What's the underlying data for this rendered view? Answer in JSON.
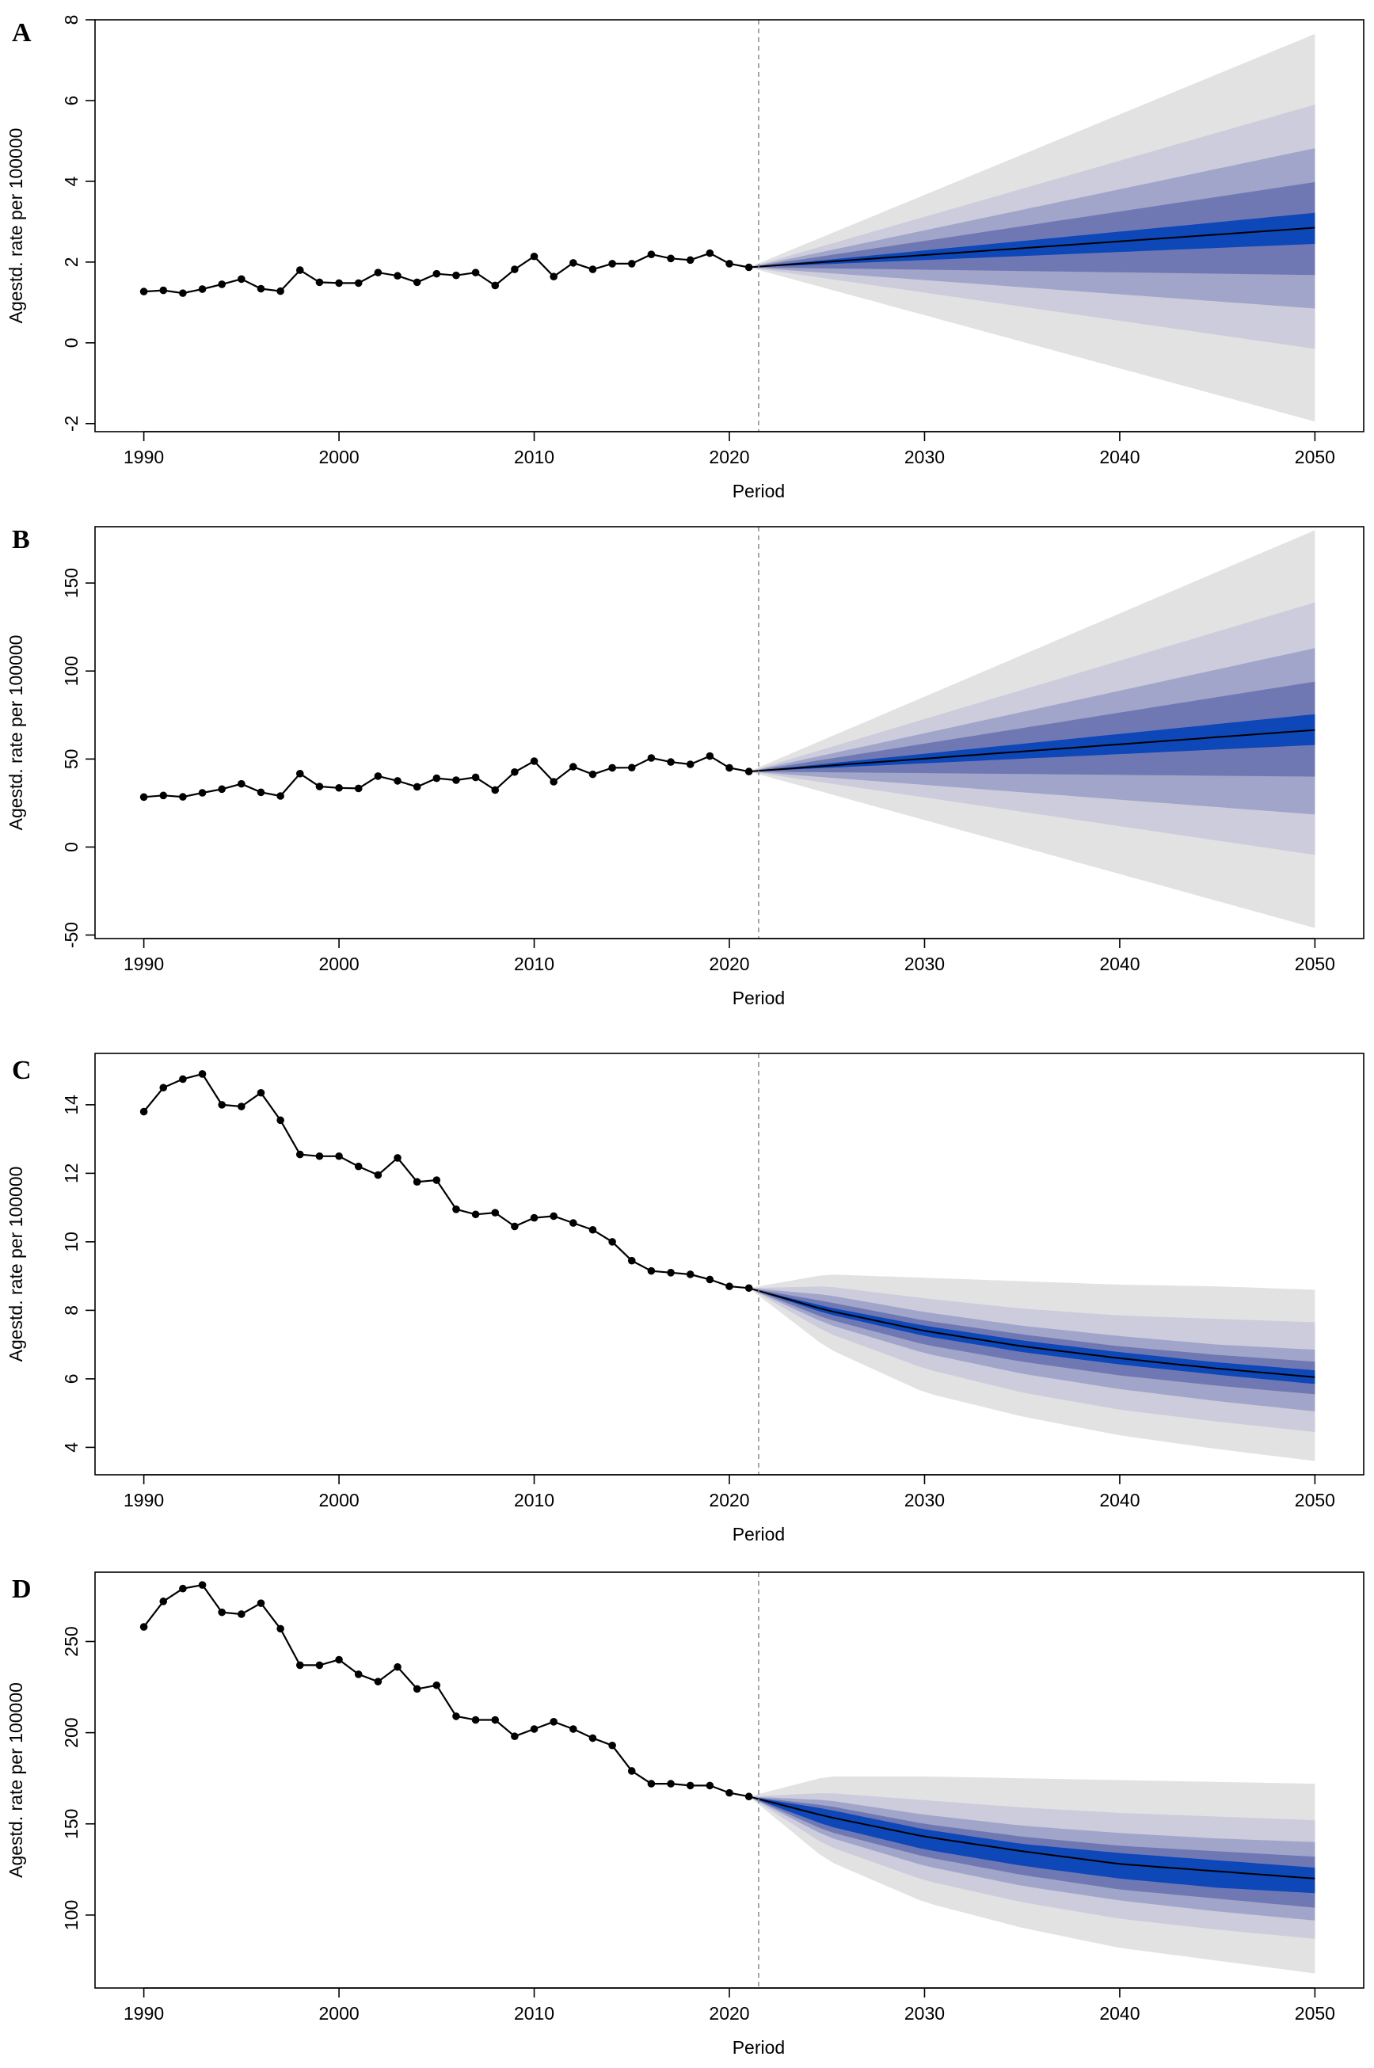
{
  "figure": {
    "background": "#ffffff"
  },
  "style": {
    "band_colors": [
      "#e2e2e2",
      "#ccccdc",
      "#a1a5c9",
      "#7078b3",
      "#0d47b8"
    ],
    "line_color": "#000000",
    "divider_color": "#888888"
  },
  "chart_data": [
    {
      "type": "line",
      "panel_label": "A",
      "xlabel": "Period",
      "ylabel": "Agestd. rate per 100000",
      "xlim": [
        1987.5,
        2052.5
      ],
      "ylim": [
        -2.2,
        8
      ],
      "xticks": [
        1990,
        2000,
        2010,
        2020,
        2030,
        2040,
        2050
      ],
      "yticks": [
        -2,
        0,
        2,
        4,
        6,
        8
      ],
      "forecast_start": 2021.5,
      "observed": {
        "x": [
          1990,
          1991,
          1992,
          1993,
          1994,
          1995,
          1996,
          1997,
          1998,
          1999,
          2000,
          2001,
          2002,
          2003,
          2004,
          2005,
          2006,
          2007,
          2008,
          2009,
          2010,
          2011,
          2012,
          2013,
          2014,
          2015,
          2016,
          2017,
          2018,
          2019,
          2020,
          2021
        ],
        "y": [
          1.27,
          1.3,
          1.23,
          1.33,
          1.45,
          1.58,
          1.34,
          1.28,
          1.8,
          1.5,
          1.48,
          1.48,
          1.74,
          1.66,
          1.5,
          1.71,
          1.67,
          1.74,
          1.42,
          1.82,
          2.14,
          1.64,
          1.98,
          1.82,
          1.96,
          1.96,
          2.19,
          2.09,
          2.05,
          2.22,
          1.96,
          1.87
        ]
      },
      "forecast": {
        "x": [
          2021,
          2050
        ],
        "mean": [
          1.87,
          2.85
        ],
        "bands": [
          {
            "lower": [
              1.87,
              -1.95
            ],
            "upper": [
              1.87,
              7.65
            ]
          },
          {
            "lower": [
              1.87,
              -0.15
            ],
            "upper": [
              1.87,
              5.9
            ]
          },
          {
            "lower": [
              1.87,
              0.85
            ],
            "upper": [
              1.87,
              4.82
            ]
          },
          {
            "lower": [
              1.87,
              1.68
            ],
            "upper": [
              1.87,
              3.98
            ]
          },
          {
            "lower": [
              1.87,
              2.45
            ],
            "upper": [
              1.87,
              3.22
            ]
          }
        ]
      }
    },
    {
      "type": "line",
      "panel_label": "B",
      "xlabel": "Period",
      "ylabel": "Agestd. rate per 100000",
      "xlim": [
        1987.5,
        2052.5
      ],
      "ylim": [
        -52,
        182
      ],
      "xticks": [
        1990,
        2000,
        2010,
        2020,
        2030,
        2040,
        2050
      ],
      "yticks": [
        -50,
        0,
        50,
        100,
        150
      ],
      "forecast_start": 2021.5,
      "observed": {
        "x": [
          1990,
          1991,
          1992,
          1993,
          1994,
          1995,
          1996,
          1997,
          1998,
          1999,
          2000,
          2001,
          2002,
          2003,
          2004,
          2005,
          2006,
          2007,
          2008,
          2009,
          2010,
          2011,
          2012,
          2013,
          2014,
          2015,
          2016,
          2017,
          2018,
          2019,
          2020,
          2021
        ],
        "y": [
          28.4,
          29.3,
          28.5,
          30.8,
          32.9,
          35.9,
          31.1,
          29.0,
          41.7,
          34.4,
          33.6,
          33.3,
          40.3,
          37.6,
          34.2,
          39.1,
          38.0,
          39.6,
          32.4,
          42.6,
          48.8,
          37.1,
          45.6,
          41.3,
          45.0,
          45.1,
          50.6,
          48.3,
          47.0,
          51.7,
          45.0,
          42.9
        ]
      },
      "forecast": {
        "x": [
          2021,
          2050
        ],
        "mean": [
          42.9,
          66.5
        ],
        "bands": [
          {
            "lower": [
              42.9,
              -46.0
            ],
            "upper": [
              42.9,
              180.0
            ]
          },
          {
            "lower": [
              42.9,
              -4.5
            ],
            "upper": [
              42.9,
              139.0
            ]
          },
          {
            "lower": [
              42.9,
              18.5
            ],
            "upper": [
              42.9,
              113.0
            ]
          },
          {
            "lower": [
              42.9,
              40.0
            ],
            "upper": [
              42.9,
              94.0
            ]
          },
          {
            "lower": [
              42.9,
              58.0
            ],
            "upper": [
              42.9,
              75.5
            ]
          }
        ]
      }
    },
    {
      "type": "line",
      "panel_label": "C",
      "xlabel": "Period",
      "ylabel": "Agestd. rate per 100000",
      "xlim": [
        1987.5,
        2052.5
      ],
      "ylim": [
        3.2,
        15.5
      ],
      "xticks": [
        1990,
        2000,
        2010,
        2020,
        2030,
        2040,
        2050
      ],
      "yticks": [
        4,
        6,
        8,
        10,
        12,
        14
      ],
      "forecast_start": 2021.5,
      "observed": {
        "x": [
          1990,
          1991,
          1992,
          1993,
          1994,
          1995,
          1996,
          1997,
          1998,
          1999,
          2000,
          2001,
          2002,
          2003,
          2004,
          2005,
          2006,
          2007,
          2008,
          2009,
          2010,
          2011,
          2012,
          2013,
          2014,
          2015,
          2016,
          2017,
          2018,
          2019,
          2020,
          2021
        ],
        "y": [
          13.8,
          14.5,
          14.75,
          14.9,
          14.0,
          13.95,
          14.35,
          13.55,
          12.55,
          12.5,
          12.5,
          12.2,
          11.95,
          12.45,
          11.75,
          11.8,
          10.95,
          10.8,
          10.85,
          10.45,
          10.7,
          10.75,
          10.55,
          10.35,
          10.0,
          9.45,
          9.15,
          9.1,
          9.05,
          8.9,
          8.7,
          8.65
        ]
      },
      "forecast": {
        "x": [
          2021,
          2025,
          2030,
          2035,
          2040,
          2045,
          2050
        ],
        "mean": [
          8.65,
          8.0,
          7.4,
          6.95,
          6.6,
          6.3,
          6.05
        ],
        "bands": [
          {
            "lower": [
              8.65,
              6.9,
              5.6,
              4.9,
              4.35,
              3.95,
              3.6
            ],
            "upper": [
              8.65,
              9.05,
              8.95,
              8.85,
              8.75,
              8.7,
              8.6
            ]
          },
          {
            "lower": [
              8.65,
              7.35,
              6.3,
              5.6,
              5.1,
              4.75,
              4.45
            ],
            "upper": [
              8.65,
              8.7,
              8.35,
              8.05,
              7.85,
              7.75,
              7.65
            ]
          },
          {
            "lower": [
              8.65,
              7.6,
              6.75,
              6.15,
              5.7,
              5.35,
              5.05
            ],
            "upper": [
              8.65,
              8.45,
              7.95,
              7.55,
              7.25,
              7.0,
              6.85
            ]
          },
          {
            "lower": [
              8.65,
              7.75,
              7.0,
              6.5,
              6.1,
              5.8,
              5.55
            ],
            "upper": [
              8.65,
              8.25,
              7.7,
              7.3,
              6.95,
              6.7,
              6.5
            ]
          },
          {
            "lower": [
              8.65,
              7.9,
              7.25,
              6.78,
              6.42,
              6.12,
              5.85
            ],
            "upper": [
              8.65,
              8.1,
              7.55,
              7.12,
              6.78,
              6.48,
              6.25
            ]
          }
        ]
      }
    },
    {
      "type": "line",
      "panel_label": "D",
      "xlabel": "Period",
      "ylabel": "Agestd. rate per 100000",
      "xlim": [
        1987.5,
        2052.5
      ],
      "ylim": [
        60,
        288
      ],
      "xticks": [
        1990,
        2000,
        2010,
        2020,
        2030,
        2040,
        2050
      ],
      "yticks": [
        100,
        150,
        200,
        250
      ],
      "forecast_start": 2021.5,
      "observed": {
        "x": [
          1990,
          1991,
          1992,
          1993,
          1994,
          1995,
          1996,
          1997,
          1998,
          1999,
          2000,
          2001,
          2002,
          2003,
          2004,
          2005,
          2006,
          2007,
          2008,
          2009,
          2010,
          2011,
          2012,
          2013,
          2014,
          2015,
          2016,
          2017,
          2018,
          2019,
          2020,
          2021
        ],
        "y": [
          258,
          272,
          279,
          281,
          266,
          265,
          271,
          257,
          237,
          237,
          240,
          232,
          228,
          236,
          224,
          226,
          209,
          207,
          207,
          198,
          202,
          206,
          202,
          197,
          193,
          179,
          172,
          172,
          171,
          171,
          167,
          165
        ]
      },
      "forecast": {
        "x": [
          2021,
          2025,
          2030,
          2035,
          2040,
          2045,
          2050
        ],
        "mean": [
          165,
          154,
          143,
          135,
          128,
          124,
          120
        ],
        "bands": [
          {
            "lower": [
              165,
              130,
              107,
              93,
              82,
              75,
              68
            ],
            "upper": [
              165,
              176,
              176,
              175,
              174,
              173,
              172
            ]
          },
          {
            "lower": [
              165,
              138,
              119,
              107,
              98,
              92,
              87
            ],
            "upper": [
              165,
              167,
              163,
              159,
              156,
              154,
              152
            ]
          },
          {
            "lower": [
              165,
              143,
              127,
              116,
              108,
              102,
              97
            ],
            "upper": [
              165,
              163,
              155,
              149,
              145,
              142,
              140
            ]
          },
          {
            "lower": [
              165,
              146,
              132,
              122,
              114,
              109,
              104
            ],
            "upper": [
              165,
              160,
              150,
              143,
              138,
              135,
              132
            ]
          },
          {
            "lower": [
              165,
              149,
              136,
              127,
              120,
              115,
              112
            ],
            "upper": [
              165,
              158,
              147,
              139,
              134,
              130,
              126
            ]
          }
        ]
      }
    }
  ]
}
